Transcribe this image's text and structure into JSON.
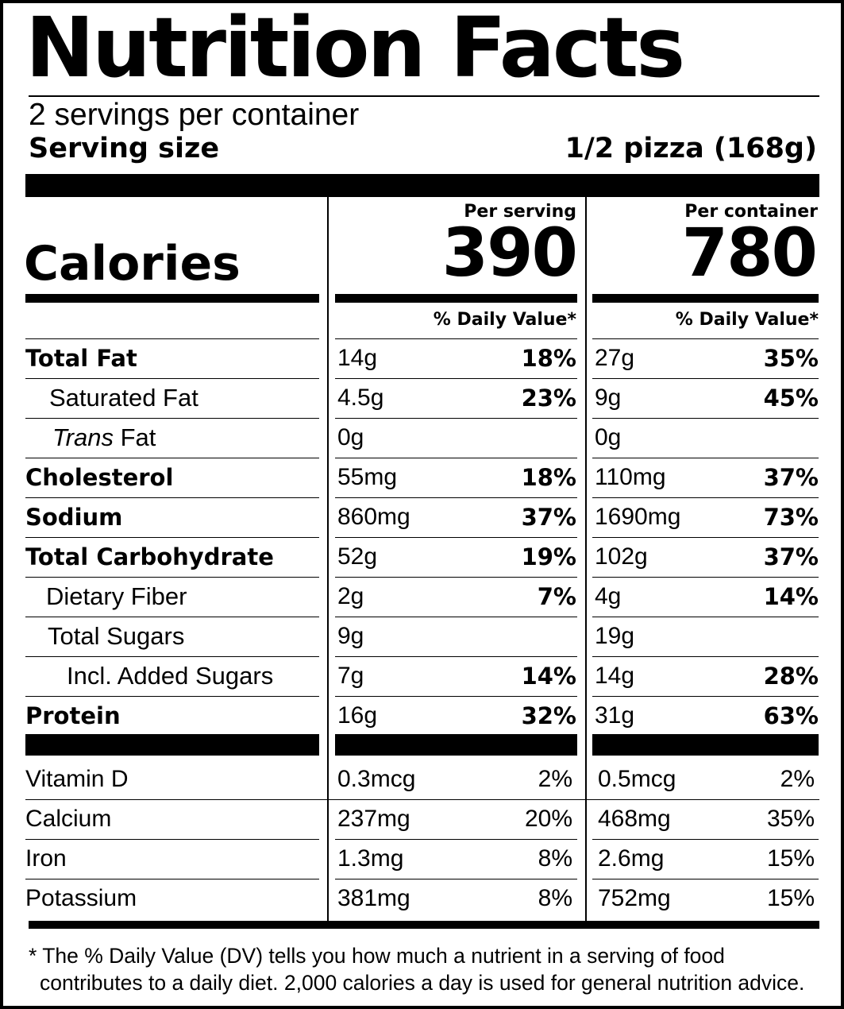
{
  "label": {
    "title": "Nutrition Facts",
    "servings_per_container": "2 servings per container",
    "serving_size_label": "Serving size",
    "serving_size_value": "1/2 pizza (168g)",
    "calories_label": "Calories",
    "per_serving_label": "Per serving",
    "per_container_label": "Per container",
    "calories_per_serving": "390",
    "calories_per_container": "780",
    "dv_header": "% Daily Value*",
    "nutrients": [
      {
        "name": "Total Fat",
        "name_italic": "",
        "serving_amount": "14g",
        "serving_dv": "18%",
        "container_amount": "27g",
        "container_dv": "35%"
      },
      {
        "name": "Saturated Fat",
        "name_italic": "",
        "serving_amount": "4.5g",
        "serving_dv": "23%",
        "container_amount": "9g",
        "container_dv": "45%"
      },
      {
        "name": "Fat",
        "name_italic": "Trans",
        "serving_amount": "0g",
        "serving_dv": "",
        "container_amount": "0g",
        "container_dv": ""
      },
      {
        "name": "Cholesterol",
        "name_italic": "",
        "serving_amount": "55mg",
        "serving_dv": "18%",
        "container_amount": "110mg",
        "container_dv": "37%"
      },
      {
        "name": "Sodium",
        "name_italic": "",
        "serving_amount": "860mg",
        "serving_dv": "37%",
        "container_amount": "1690mg",
        "container_dv": "73%"
      },
      {
        "name": "Total Carbohydrate",
        "name_italic": "",
        "serving_amount": "52g",
        "serving_dv": "19%",
        "container_amount": "102g",
        "container_dv": "37%"
      },
      {
        "name": "Dietary Fiber",
        "name_italic": "",
        "serving_amount": "2g",
        "serving_dv": "7%",
        "container_amount": "4g",
        "container_dv": "14%"
      },
      {
        "name": "Total Sugars",
        "name_italic": "",
        "serving_amount": "9g",
        "serving_dv": "",
        "container_amount": "19g",
        "container_dv": ""
      },
      {
        "name": "Incl. Added Sugars",
        "name_italic": "",
        "serving_amount": "7g",
        "serving_dv": "14%",
        "container_amount": "14g",
        "container_dv": "28%"
      },
      {
        "name": "Protein",
        "name_italic": "",
        "serving_amount": "16g",
        "serving_dv": "32%",
        "container_amount": "31g",
        "container_dv": "63%"
      }
    ],
    "vitamins": [
      {
        "name": "Vitamin D",
        "serving_amount": "0.3mcg",
        "serving_dv": "2%",
        "container_amount": "0.5mcg",
        "container_dv": "2%"
      },
      {
        "name": "Calcium",
        "serving_amount": "237mg",
        "serving_dv": "20%",
        "container_amount": "468mg",
        "container_dv": "35%"
      },
      {
        "name": "Iron",
        "serving_amount": "1.3mg",
        "serving_dv": "8%",
        "container_amount": "2.6mg",
        "container_dv": "15%"
      },
      {
        "name": "Potassium",
        "serving_amount": "381mg",
        "serving_dv": "8%",
        "container_amount": "752mg",
        "container_dv": "15%"
      }
    ],
    "footnote_line1": "* The % Daily Value (DV) tells you how much a nutrient in a serving of food",
    "footnote_line2": "contributes to a daily diet. 2,000 calories a day is used for general nutrition advice."
  }
}
